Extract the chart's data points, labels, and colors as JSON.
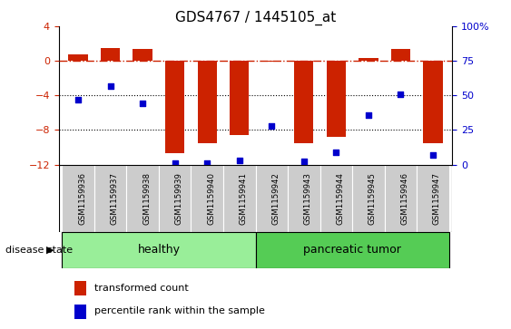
{
  "title": "GDS4767 / 1445105_at",
  "samples": [
    "GSM1159936",
    "GSM1159937",
    "GSM1159938",
    "GSM1159939",
    "GSM1159940",
    "GSM1159941",
    "GSM1159942",
    "GSM1159943",
    "GSM1159944",
    "GSM1159945",
    "GSM1159946",
    "GSM1159947"
  ],
  "red_values": [
    0.7,
    1.5,
    1.4,
    -10.7,
    -9.5,
    -8.6,
    -0.1,
    -9.5,
    -8.8,
    0.3,
    1.4,
    -9.5
  ],
  "blue_values": [
    47,
    57,
    44,
    1,
    1,
    3,
    28,
    2,
    9,
    36,
    51,
    7
  ],
  "left_ylim": [
    -12,
    4
  ],
  "right_ylim": [
    0,
    100
  ],
  "left_yticks": [
    -12,
    -8,
    -4,
    0,
    4
  ],
  "right_yticks": [
    0,
    25,
    50,
    75,
    100
  ],
  "right_yticklabels": [
    "0",
    "25",
    "50",
    "75",
    "100%"
  ],
  "bar_color": "#CC2200",
  "dot_color": "#0000CC",
  "hline_y": 0,
  "hline_color": "#CC2200",
  "dotted_lines": [
    -4,
    -8
  ],
  "dotted_color": "#000000",
  "healthy_label": "healthy",
  "tumor_label": "pancreatic tumor",
  "healthy_color": "#99EE99",
  "tumor_color": "#55CC55",
  "disease_state_label": "disease state",
  "legend_bar_label": "transformed count",
  "legend_dot_label": "percentile rank within the sample",
  "background_color": "#FFFFFF",
  "plot_bg_color": "#FFFFFF",
  "n_healthy": 6,
  "n_tumor": 6
}
